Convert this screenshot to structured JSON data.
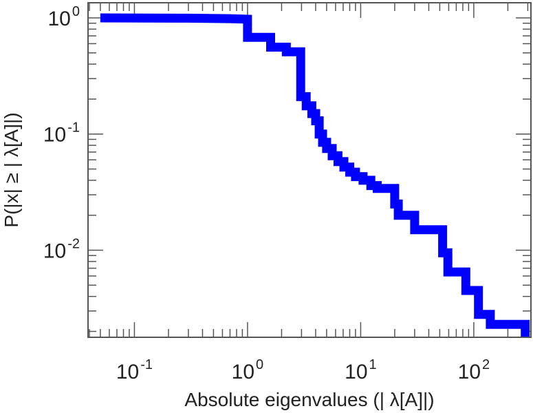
{
  "chart_data": {
    "type": "line",
    "subtype": "step",
    "xlabel": "Absolute eigenvalues (|     λ[A]|)",
    "ylabel": "P(|x|  ≥ | λ[A]|)",
    "x_scale": "log",
    "y_scale": "log",
    "xlim": [
      0.0389,
      320
    ],
    "ylim": [
      0.00178,
      1.35
    ],
    "grid": false,
    "color": "#0000ff",
    "x_ticks": [
      {
        "base": "10",
        "exp": "-1",
        "value": 0.1
      },
      {
        "base": "10",
        "exp": "0",
        "value": 1
      },
      {
        "base": "10",
        "exp": "1",
        "value": 10
      },
      {
        "base": "10",
        "exp": "2",
        "value": 100
      }
    ],
    "y_ticks": [
      {
        "base": "10",
        "exp": "0",
        "value": 1
      },
      {
        "base": "10",
        "exp": "-1",
        "value": 0.1
      },
      {
        "base": "10",
        "exp": "-2",
        "value": 0.01
      }
    ],
    "series": [
      {
        "x": [
          0.05,
          0.3,
          0.7,
          1.0,
          1.0,
          1.6,
          1.6,
          2.2,
          2.2,
          2.95,
          2.95,
          3.3,
          3.3,
          3.7,
          3.7,
          4.0,
          4.0,
          4.3,
          4.3,
          4.6,
          4.6,
          5.0,
          5.0,
          5.6,
          5.6,
          6.3,
          6.3,
          7.1,
          7.1,
          8.0,
          8.0,
          9.0,
          9.0,
          10.5,
          10.5,
          12.3,
          12.3,
          14.0,
          14.0,
          17.5,
          17.5,
          20.0,
          20.0,
          21.5,
          21.5,
          30.0,
          30.0,
          53.0,
          53.0,
          59.0,
          59.0,
          85.0,
          85.0,
          110.0,
          110.0,
          140.0,
          140.0,
          285.0,
          285.0
        ],
        "y": [
          1.0,
          0.995,
          0.985,
          0.975,
          0.68,
          0.68,
          0.56,
          0.56,
          0.51,
          0.51,
          0.21,
          0.21,
          0.175,
          0.175,
          0.15,
          0.15,
          0.13,
          0.13,
          0.1,
          0.1,
          0.085,
          0.085,
          0.075,
          0.075,
          0.065,
          0.065,
          0.058,
          0.058,
          0.052,
          0.052,
          0.047,
          0.047,
          0.043,
          0.043,
          0.04,
          0.04,
          0.036,
          0.036,
          0.034,
          0.034,
          0.034,
          0.034,
          0.025,
          0.025,
          0.02,
          0.02,
          0.015,
          0.015,
          0.0095,
          0.0095,
          0.0065,
          0.0065,
          0.0045,
          0.0045,
          0.0028,
          0.0028,
          0.0023,
          0.0023,
          0.0018
        ]
      }
    ]
  }
}
